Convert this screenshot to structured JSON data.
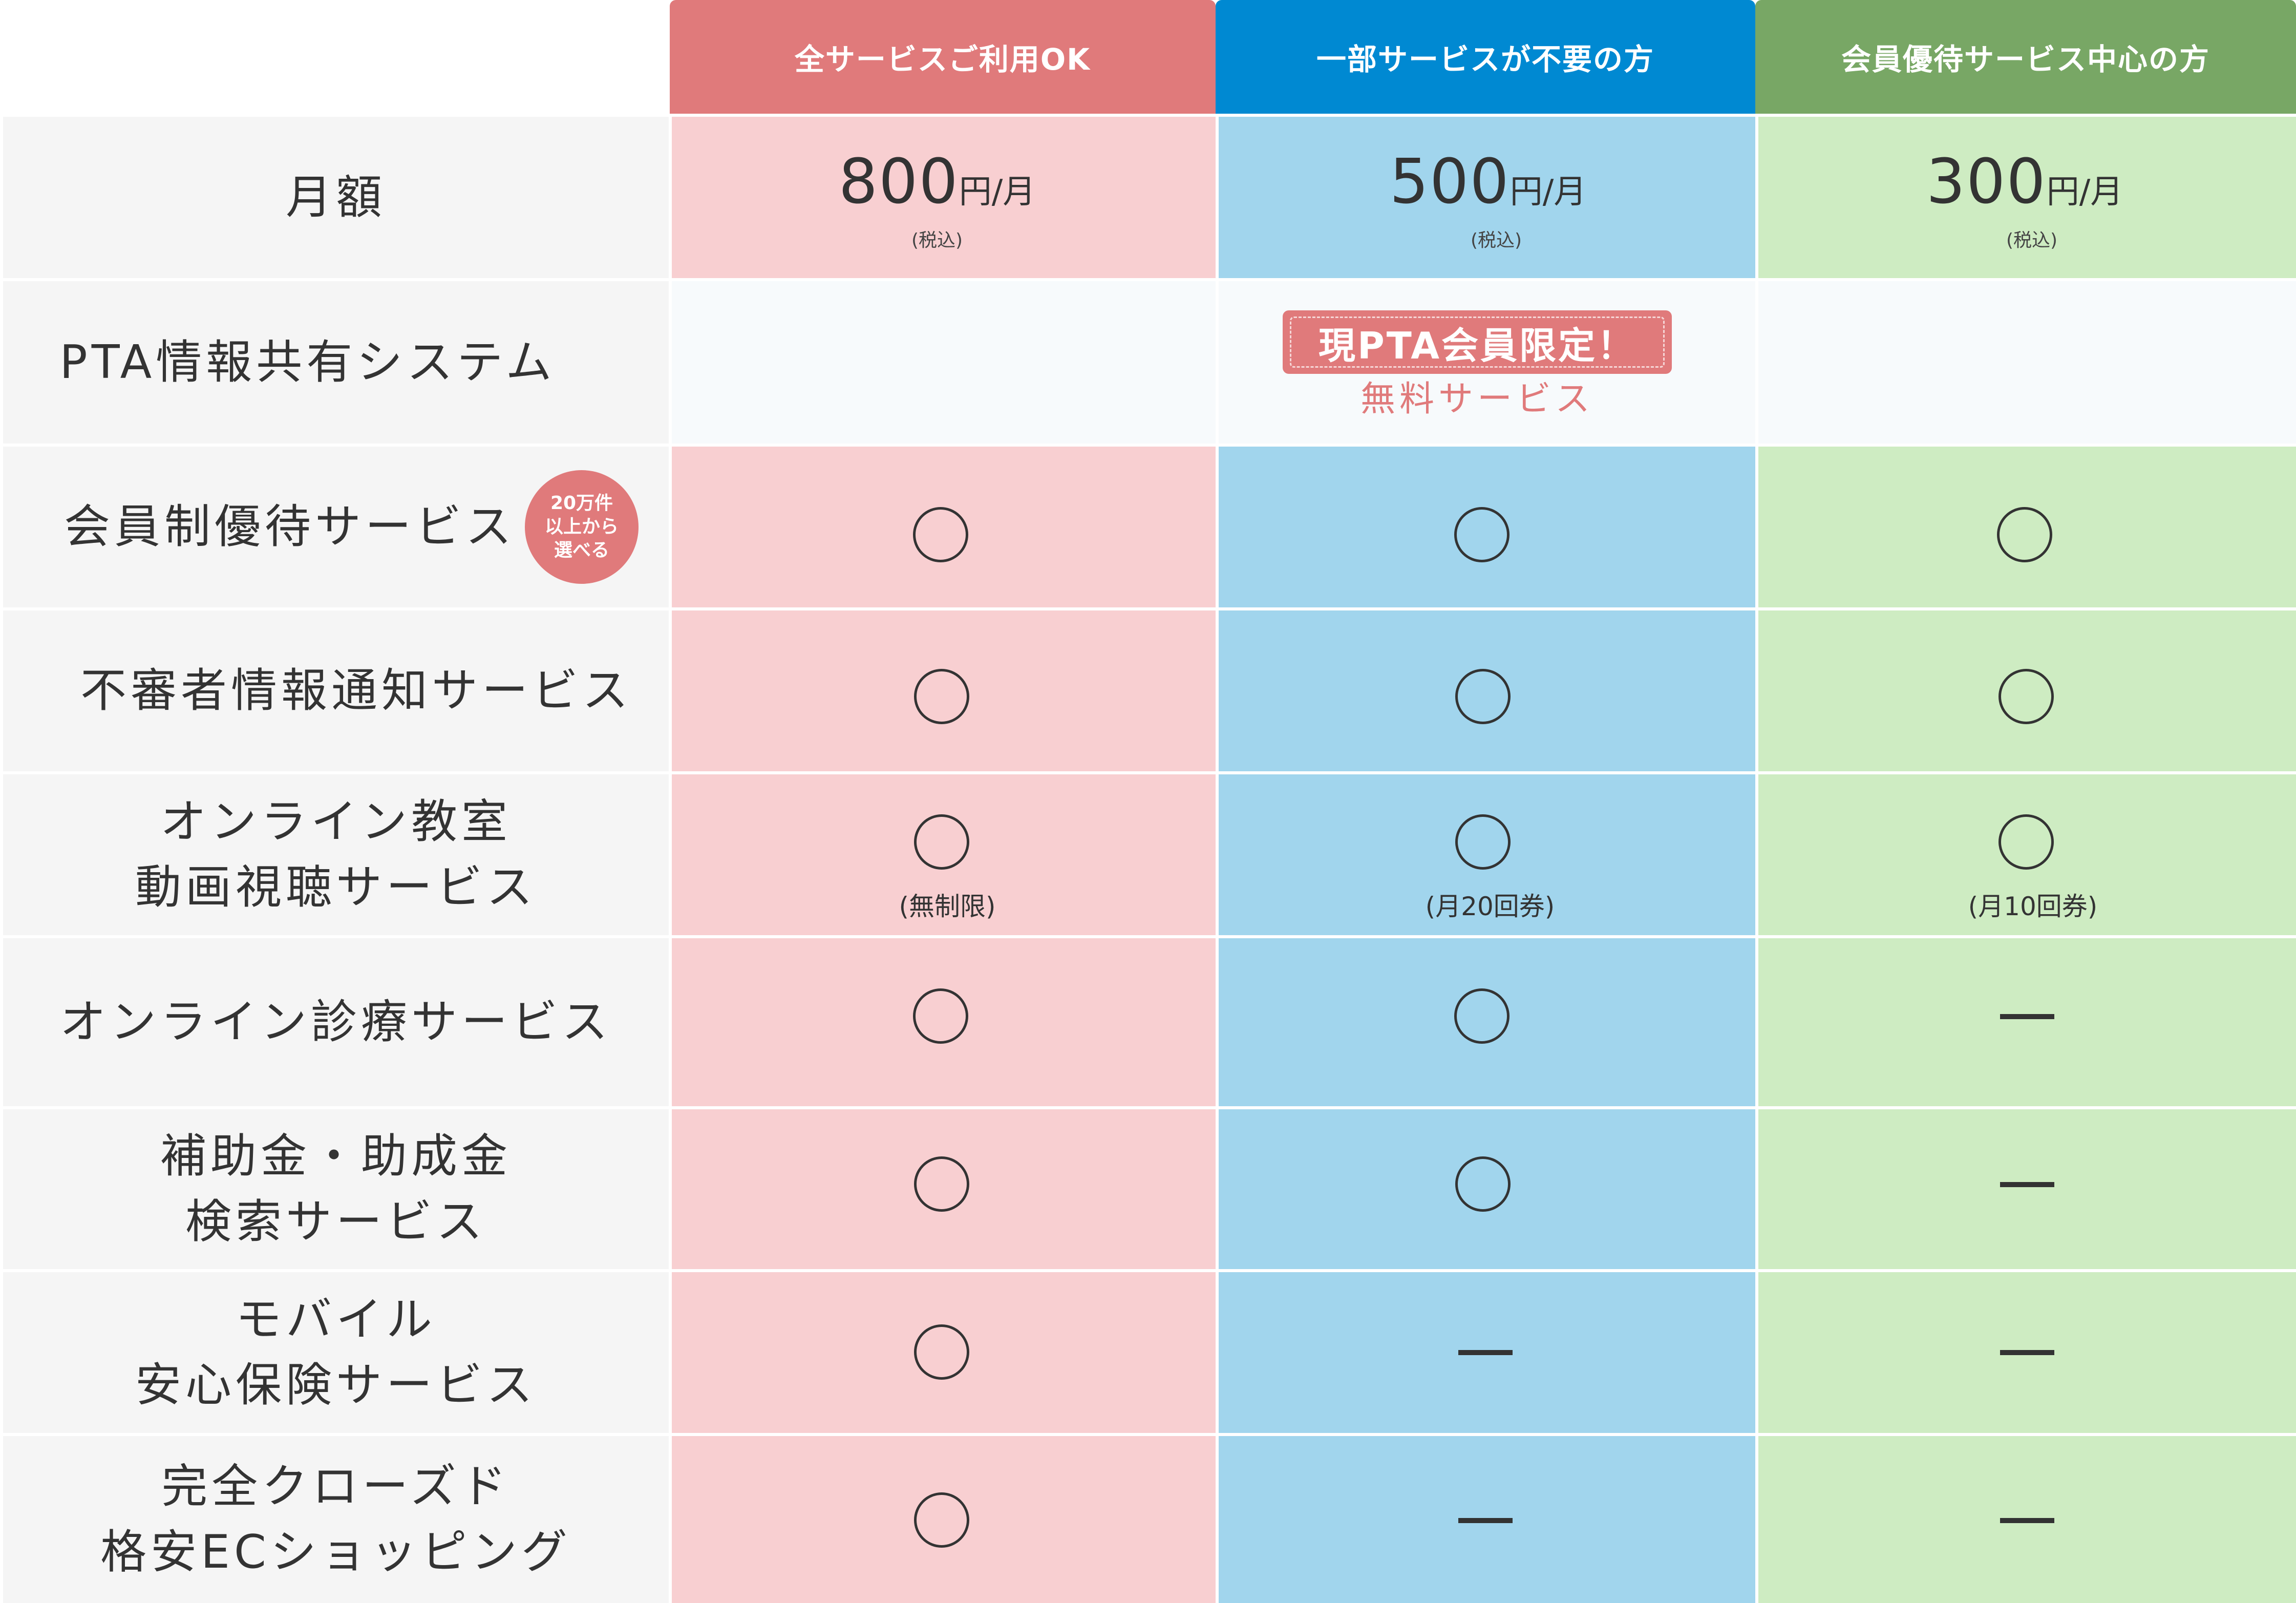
{
  "plans": [
    {
      "header": "全サービスご利用OK",
      "price": "800",
      "unit": "円/月",
      "tax": "(税込)",
      "header_color": "#e07a7b",
      "body_color": "#f8cfd1"
    },
    {
      "header": "一部サービスが不要の方",
      "price": "500",
      "unit": "円/月",
      "tax": "(税込)",
      "header_color": "#0089d2",
      "body_color": "#a1d5ed"
    },
    {
      "header": "会員優待サービス中心の方",
      "price": "300",
      "unit": "円/月",
      "tax": "(税込)",
      "header_color": "#78a765",
      "body_color": "#ceecc2"
    }
  ],
  "rows": {
    "monthly": {
      "label": "月額"
    },
    "pta": {
      "label": "PTA情報共有システム",
      "badge": "現PTA会員限定！",
      "sub": "無料サービス"
    },
    "member": {
      "label": "会員制優待サービス",
      "badge": [
        "20万件",
        "以上から",
        "選べる"
      ],
      "marks": [
        "○",
        "○",
        "○"
      ]
    },
    "suspicious": {
      "label": "不審者情報通知サービス",
      "marks": [
        "○",
        "○",
        "○"
      ]
    },
    "online_class": {
      "label": [
        "オンライン教室",
        "動画視聴サービス"
      ],
      "marks": [
        "○",
        "○",
        "○"
      ],
      "notes": [
        "(無制限)",
        "(月20回券)",
        "(月10回券)"
      ]
    },
    "online_medical": {
      "label": "オンライン診療サービス",
      "marks": [
        "○",
        "○",
        "—"
      ]
    },
    "subsidy": {
      "label": [
        "補助金・助成金",
        "検索サービス"
      ],
      "marks": [
        "○",
        "○",
        "—"
      ]
    },
    "mobile": {
      "label": [
        "モバイル",
        "安心保険サービス"
      ],
      "marks": [
        "○",
        "—",
        "—"
      ]
    },
    "ec": {
      "label": [
        "完全クローズド",
        "格安ECショッピング"
      ],
      "marks": [
        "○",
        "—",
        "—"
      ]
    }
  }
}
